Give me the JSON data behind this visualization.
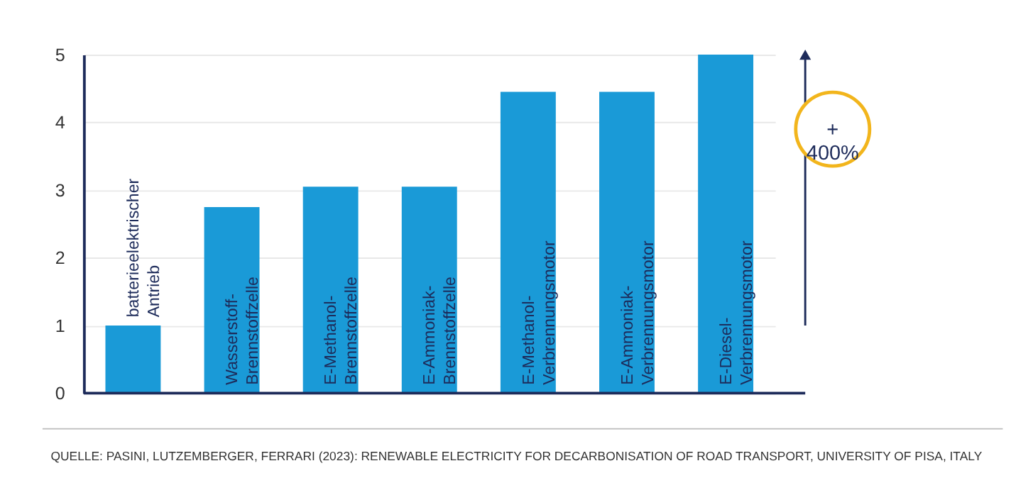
{
  "chart_data": {
    "type": "bar",
    "categories": [
      "batterieelektrischer\nAntrieb",
      "Wasserstoff-\nBrennstoffzelle",
      "E-Methanol-\nBrennstoffzelle",
      "E-Ammoniak-\nBrennstoffzelle",
      "E-Methanol-\nVerbrennungsmotor",
      "E-Ammoniak-\nVerbrennungsmotor",
      "E-Diesel-\nVerbrennungsmotor"
    ],
    "values": [
      1,
      2.75,
      3.05,
      3.05,
      4.45,
      4.45,
      5
    ],
    "color": "#1a9ad7",
    "ylim": [
      0,
      5
    ],
    "yticks": [
      0,
      1,
      2,
      3,
      4,
      5
    ],
    "grid": "y",
    "annotations": [
      "+\n400%",
      "QUELLE: PASINI, LUTZEMBERGER, FERRARI (2023): RENEWABLE ELECTRICITY FOR DECARBONISATION OF ROAD TRANSPORT, UNIVERSITY OF PISA, ITALY"
    ]
  }
}
